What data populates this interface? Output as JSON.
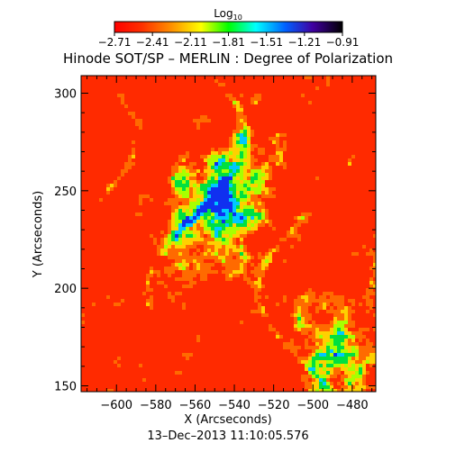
{
  "chart_data": {
    "type": "heatmap",
    "title": "Hinode SOT/SP – MERLIN : Degree of Polarization",
    "xlabel": "X (Arcseconds)",
    "ylabel": "Y (Arcseconds)",
    "date_label": "13–Dec–2013 11:10:05.576",
    "xlim": [
      -618,
      -468
    ],
    "ylim": [
      147,
      309
    ],
    "x_ticks": [
      -600,
      -580,
      -560,
      -540,
      -520,
      -500,
      -480
    ],
    "x_tick_labels": [
      "−600",
      "−580",
      "−560",
      "−540",
      "−520",
      "−500",
      "−480"
    ],
    "y_ticks": [
      150,
      200,
      250,
      300
    ],
    "y_tick_labels": [
      "150",
      "200",
      "250",
      "300"
    ],
    "colorbar": {
      "label": "Log10",
      "label_main": "Log",
      "label_sub": "10",
      "range": [
        -2.71,
        -0.91
      ],
      "tick_values": [
        -2.71,
        -2.41,
        -2.11,
        -1.81,
        -1.51,
        -1.21,
        -0.91
      ],
      "tick_labels": [
        "−2.71",
        "−2.41",
        "−2.11",
        "−1.81",
        "−1.51",
        "−1.21",
        "−0.91"
      ],
      "colors": [
        "#ff0000",
        "#ff8000",
        "#ffff00",
        "#00ff00",
        "#00ffff",
        "#0000ff",
        "#000000"
      ]
    },
    "field_summary": {
      "dominant_value_range": [
        -2.71,
        -2.41
      ],
      "low_polarization_color": "#ff2a00",
      "mid_polarization_color": "#ffe800",
      "high_polarization_color": "#1030f0",
      "features": [
        {
          "label": "high-polarization network lanes",
          "x": -560,
          "y": 235,
          "value": -1.21
        },
        {
          "label": "high-polarization patch",
          "x": -490,
          "y": 165,
          "value": -1.31
        },
        {
          "label": "yellow-green transition region",
          "x": -540,
          "y": 255,
          "value": -2.05
        }
      ]
    }
  }
}
